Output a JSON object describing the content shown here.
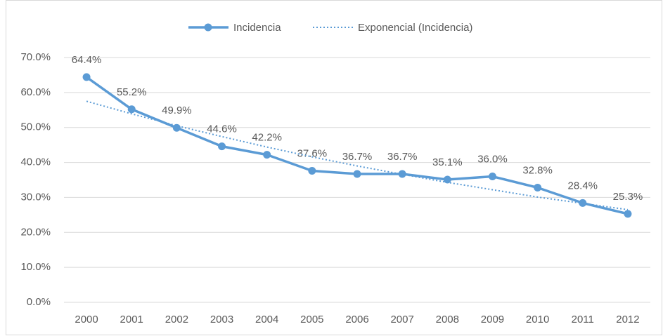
{
  "chart_data": {
    "type": "line",
    "categories": [
      "2000",
      "2001",
      "2002",
      "2003",
      "2004",
      "2005",
      "2006",
      "2007",
      "2008",
      "2009",
      "2010",
      "2011",
      "2012"
    ],
    "series": [
      {
        "name": "Incidencia",
        "color": "#5b9bd5",
        "style": "solid",
        "markers": true,
        "values": [
          64.4,
          55.2,
          49.9,
          44.6,
          42.2,
          37.6,
          36.7,
          36.7,
          35.1,
          36.0,
          32.8,
          28.4,
          25.3
        ],
        "value_labels": [
          "64.4%",
          "55.2%",
          "49.9%",
          "44.6%",
          "42.2%",
          "37.6%",
          "36.7%",
          "36.7%",
          "35.1%",
          "36.0%",
          "32.8%",
          "28.4%",
          "25.3%"
        ]
      },
      {
        "name": "Exponencial (Incidencia)",
        "color": "#5b9bd5",
        "style": "dotted",
        "markers": false,
        "values": [
          57.5,
          53.9,
          50.5,
          47.4,
          44.4,
          41.6,
          39.0,
          36.6,
          34.3,
          32.2,
          30.1,
          28.3,
          26.5
        ]
      }
    ],
    "ylim": [
      0,
      70
    ],
    "yticks": [
      {
        "value": 0,
        "label": "0.0%"
      },
      {
        "value": 10,
        "label": "10.0%"
      },
      {
        "value": 20,
        "label": "20.0%"
      },
      {
        "value": 30,
        "label": "30.0%"
      },
      {
        "value": 40,
        "label": "40.0%"
      },
      {
        "value": 50,
        "label": "50.0%"
      },
      {
        "value": 60,
        "label": "60.0%"
      },
      {
        "value": 70,
        "label": "70.0%"
      }
    ],
    "grid": true,
    "legend": "top"
  }
}
